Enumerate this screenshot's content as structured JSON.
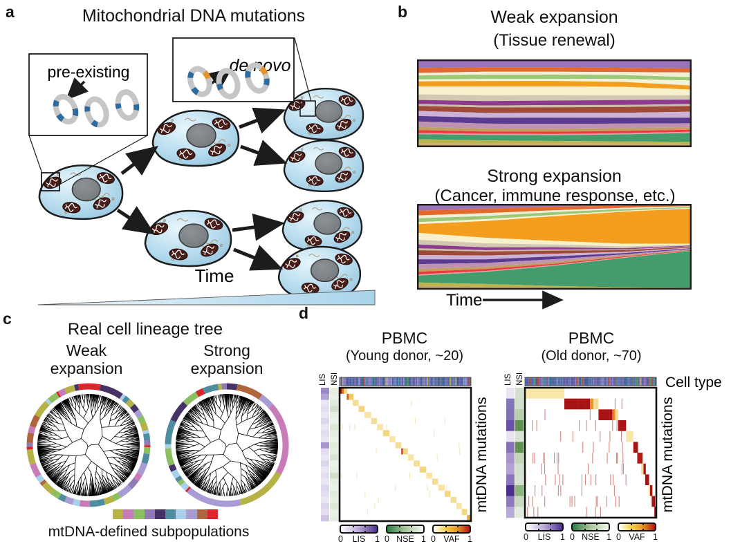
{
  "figure": {
    "a": {
      "label": "a",
      "title": "Mitochondrial DNA mutations",
      "pre_existing_label": "pre-existing",
      "de_novo_label": "de novo",
      "time_label": "Time",
      "mutation_colors": {
        "backbone": "#c6c6c6",
        "pre_existing": "#2e6b9e",
        "de_novo": "#e8922e"
      },
      "cell_colors": {
        "body_light": "#ddf0f8",
        "body_mid": "#a6d2e8",
        "body_dark": "#7db8d8",
        "outline": "#1c1c1c",
        "nucleus": "#7e8285",
        "mitochondrion": "#4a1f1a",
        "er": "#b39b79"
      }
    },
    "b": {
      "label": "b",
      "weak_title": "Weak expansion",
      "weak_subtitle": "(Tissue renewal)",
      "strong_title": "Strong expansion",
      "strong_subtitle": "(Cancer, immune response, etc.)",
      "time_label": "Time"
    },
    "c": {
      "label": "c",
      "title": "Real cell lineage tree",
      "weak_line1": "Weak",
      "weak_line2": "expansion",
      "strong_line1": "Strong",
      "strong_line2": "expansion",
      "legend_label": "mtDNA-defined subpopulations",
      "legend_colors": [
        "#b5b246",
        "#c77cb9",
        "#8cbf5f",
        "#9279b6",
        "#463267",
        "#4e8ca0",
        "#a8d0e8",
        "#a99bd4",
        "#b0663c",
        "#d9252b"
      ]
    },
    "d": {
      "label": "d",
      "young_title": "PBMC",
      "young_subtitle": "(Young donor,  ~20)",
      "old_title": "PBMC",
      "old_subtitle": "(Old donor,  ~70)",
      "cell_type_label": "Cell type",
      "mutations_label": "mtDNA mutations",
      "lis_label": "LIS",
      "nse_label": "NSE",
      "colorbars": [
        {
          "name": "LIS",
          "min": "0",
          "max": "1",
          "gradient": [
            "#ffffff",
            "#b9a9d6",
            "#4a2f8f"
          ]
        },
        {
          "name": "NSE",
          "min": "0",
          "max": "1",
          "gradient": [
            "#2f7d46",
            "#a8c69c",
            "#f4f8f1"
          ]
        },
        {
          "name": "VAF",
          "min": "0",
          "max": "1",
          "gradient": [
            "#ffffff",
            "#f5d34e",
            "#e8961e",
            "#b01414"
          ]
        }
      ]
    }
  },
  "muller": {
    "weak": {
      "bands": [
        [
          "#9a74b8",
          0.085,
          0.08,
          0.08,
          0.085,
          0.09
        ],
        [
          "#e4692d",
          0.05,
          0.046,
          0.046,
          0.044,
          0.04
        ],
        [
          "#f3efd7",
          0.025,
          0.03,
          0.03,
          0.03,
          0.046
        ],
        [
          "#9cc878",
          0.04,
          0.045,
          0.045,
          0.04,
          0.034
        ],
        [
          "#f6f2d8",
          0.02,
          0.02,
          0.02,
          0.03,
          0.05
        ],
        [
          "#f39e1e",
          0.05,
          0.056,
          0.056,
          0.05,
          0.04
        ],
        [
          "#f6f1cb",
          0.08,
          0.09,
          0.09,
          0.085,
          0.056
        ],
        [
          "#d2c8b2",
          0.056,
          0.06,
          0.056,
          0.05,
          0.044
        ],
        [
          "#8e3a8e",
          0.04,
          0.046,
          0.046,
          0.05,
          0.044
        ],
        [
          "#cbbda6",
          0.02,
          0.02,
          0.024,
          0.02,
          0.02
        ],
        [
          "#9e4c39",
          0.05,
          0.056,
          0.056,
          0.06,
          0.056
        ],
        [
          "#cbb2d6",
          0.05,
          0.05,
          0.05,
          0.05,
          0.06
        ],
        [
          "#5b3b90",
          0.056,
          0.06,
          0.064,
          0.06,
          0.056
        ],
        [
          "#bd92b3",
          0.056,
          0.05,
          0.05,
          0.044,
          0.04
        ],
        [
          "#bf9f60",
          0.03,
          0.03,
          0.03,
          0.03,
          0.024
        ],
        [
          "#ee3a3c",
          0.03,
          0.024,
          0.024,
          0.024,
          0.02
        ],
        [
          "#dba3a9",
          0.012,
          0.012,
          0.012,
          0.012,
          0.012
        ],
        [
          "#449c6c",
          0.05,
          0.056,
          0.06,
          0.07,
          0.09
        ],
        [
          "#b9b44c",
          0.04,
          0.03,
          0.024,
          0.02,
          0.018
        ],
        [
          "#c7a76b",
          0.04,
          0.04,
          0.04,
          0.04,
          0.034
        ]
      ]
    },
    "strong": {
      "bands": [
        [
          "#9a74b8",
          0.07,
          0.05,
          0.03,
          0.02,
          0.012
        ],
        [
          "#e4692d",
          0.05,
          0.05,
          0.04,
          0.024,
          0.014
        ],
        [
          "#f3efd7",
          0.03,
          0.03,
          0.02,
          0.014,
          0.01
        ],
        [
          "#9cc878",
          0.04,
          0.034,
          0.03,
          0.02,
          0.01
        ],
        [
          "#f6f2d8",
          0.02,
          0.02,
          0.014,
          0.01,
          0.008
        ],
        [
          "#f39e1e",
          0.09,
          0.18,
          0.27,
          0.36,
          0.41
        ],
        [
          "#f6f1cb",
          0.07,
          0.06,
          0.04,
          0.03,
          0.01
        ],
        [
          "#d2c8b2",
          0.05,
          0.044,
          0.03,
          0.02,
          0.01
        ],
        [
          "#8e3a8e",
          0.04,
          0.03,
          0.024,
          0.014,
          0.008
        ],
        [
          "#cbbda6",
          0.02,
          0.014,
          0.012,
          0.008,
          0.005
        ],
        [
          "#9e4c39",
          0.05,
          0.044,
          0.034,
          0.02,
          0.01
        ],
        [
          "#cbb2d6",
          0.044,
          0.04,
          0.03,
          0.014,
          0.008
        ],
        [
          "#5b3b90",
          0.05,
          0.04,
          0.03,
          0.014,
          0.008
        ],
        [
          "#bd92b3",
          0.05,
          0.04,
          0.03,
          0.014,
          0.008
        ],
        [
          "#bf9f60",
          0.03,
          0.024,
          0.02,
          0.01,
          0.006
        ],
        [
          "#ee3a3c",
          0.028,
          0.022,
          0.014,
          0.01,
          0.005
        ],
        [
          "#dba3a9",
          0.012,
          0.01,
          0.008,
          0.006,
          0.004
        ],
        [
          "#449c6c",
          0.07,
          0.13,
          0.22,
          0.33,
          0.43
        ],
        [
          "#b9b44c",
          0.034,
          0.03,
          0.02,
          0.014,
          0.012
        ],
        [
          "#c7a76b",
          0.04,
          0.03,
          0.02,
          0.012,
          0.008
        ]
      ]
    }
  },
  "trees": {
    "weak_ring": [
      [
        "#d9252b",
        0.035
      ],
      [
        "#463267",
        0.07
      ],
      [
        "#a8d0e8",
        0.01
      ],
      [
        "#4e8ca0",
        0.015
      ],
      [
        "#b5b246",
        0.02
      ],
      [
        "#463267",
        0.02
      ],
      [
        "#a99bd4",
        0.02
      ],
      [
        "#8cbf5f",
        0.02
      ],
      [
        "#b5b246",
        0.025
      ],
      [
        "#a8d0e8",
        0.01
      ],
      [
        "#4e8ca0",
        0.02
      ],
      [
        "#9279b6",
        0.015
      ],
      [
        "#d9252b",
        0.006
      ],
      [
        "#8cbf5f",
        0.02
      ],
      [
        "#4e8ca0",
        0.03
      ],
      [
        "#a99bd4",
        0.035
      ],
      [
        "#c77cb9",
        0.02
      ],
      [
        "#9279b6",
        0.03
      ],
      [
        "#a99bd4",
        0.04
      ],
      [
        "#8cbf5f",
        0.02
      ],
      [
        "#b5b246",
        0.03
      ],
      [
        "#4e8ca0",
        0.045
      ],
      [
        "#c77cb9",
        0.03
      ],
      [
        "#a8d0e8",
        0.02
      ],
      [
        "#a99bd4",
        0.025
      ],
      [
        "#4e8ca0",
        0.02
      ],
      [
        "#8cbf5f",
        0.025
      ],
      [
        "#b5b246",
        0.035
      ],
      [
        "#b0663c",
        0.01
      ],
      [
        "#a8d0e8",
        0.02
      ],
      [
        "#c77cb9",
        0.04
      ],
      [
        "#b5b246",
        0.045
      ],
      [
        "#d9252b",
        0.008
      ],
      [
        "#9279b6",
        0.012
      ],
      [
        "#b0663c",
        0.03
      ],
      [
        "#c77cb9",
        0.02
      ],
      [
        "#b0663c",
        0.035
      ],
      [
        "#b5b246",
        0.05
      ],
      [
        "#a8d0e8",
        0.01
      ],
      [
        "#8cbf5f",
        0.03
      ],
      [
        "#d9252b",
        0.006
      ],
      [
        "#c77cb9",
        0.02
      ],
      [
        "#b5b246",
        0.03
      ],
      [
        "#463267",
        0.012
      ],
      [
        "#d9252b",
        0.03
      ]
    ],
    "strong_ring": [
      [
        "#463267",
        0.03
      ],
      [
        "#b0663c",
        0.075
      ],
      [
        "#a99bd4",
        0.04
      ],
      [
        "#c77cb9",
        0.21
      ],
      [
        "#b5b246",
        0.145
      ],
      [
        "#a99bd4",
        0.16
      ],
      [
        "#d9252b",
        0.006
      ],
      [
        "#a8d0e8",
        0.02
      ],
      [
        "#8cbf5f",
        0.012
      ],
      [
        "#4e8ca0",
        0.012
      ],
      [
        "#a8d0e8",
        0.022
      ],
      [
        "#463267",
        0.018
      ],
      [
        "#8cbf5f",
        0.05
      ],
      [
        "#a8d0e8",
        0.012
      ],
      [
        "#4e8ca0",
        0.07
      ],
      [
        "#463267",
        0.062
      ],
      [
        "#8cbf5f",
        0.044
      ],
      [
        "#d9252b",
        0.022
      ],
      [
        "#4e8ca0",
        0.044
      ],
      [
        "#b5b246",
        0.01
      ],
      [
        "#9279b6",
        0.015
      ]
    ]
  },
  "heatmaps": {
    "young": {
      "rows": 22,
      "strip_n": 110,
      "strip_seed": 11,
      "strip_palette": [
        "#5b7fb5",
        "#6a5ca8",
        "#46659e",
        "#8a7fc0",
        "#3f5f9e",
        "#7a6ab0",
        "#9a8fd0"
      ],
      "strip_accents": [
        "#b04a3a",
        "#4f8f6f",
        "#c8a84b",
        "#5b9ab5"
      ],
      "lis": [
        "#9b88c4",
        "#b3a4d2",
        "#eae6f2",
        "#e4def0",
        "#eae6f2",
        "#ded7ec",
        "#eae6f2",
        "#e4def0",
        "#eae6f2",
        "#a795cc",
        "#e4def0",
        "#eae6f2",
        "#ded7ec",
        "#eae6f2",
        "#e4def0",
        "#eae6f2",
        "#ded7ec",
        "#e4def0",
        "#eae6f2",
        "#ded7ec",
        "#e4def0",
        "#cfc5e4"
      ],
      "nse": [
        "#e6eee1",
        "#eaf1e6",
        "#e0eada",
        "#d2e0cb",
        "#e6eee1",
        "#eaf1e6",
        "#dce7d6",
        "#e6eee1",
        "#eaf1e6",
        "#e0eada",
        "#e6eee1",
        "#d8e4d2",
        "#eaf1e6",
        "#e6eee1",
        "#d2e0cb",
        "#e6eee1",
        "#eaf1e6",
        "#e0eada",
        "#e6eee1",
        "#dce7d6",
        "#eaf1e6",
        "#e6eee1"
      ],
      "blocks": [
        [
          0,
          0.0,
          0.06,
          [
            [
              "#a01010",
              0.3
            ],
            [
              "#e07818",
              0.25
            ],
            [
              "#f6d98e",
              0.45
            ]
          ]
        ],
        [
          1,
          0.055,
          0.05,
          [
            [
              "#c85c10",
              0.3
            ],
            [
              "#f2c560",
              0.7
            ]
          ]
        ],
        [
          2,
          0.1,
          0.045,
          [
            [
              "#f6dd96",
              1
            ]
          ]
        ],
        [
          3,
          0.145,
          0.045,
          [
            [
              "#f3d67e",
              1
            ]
          ]
        ],
        [
          4,
          0.19,
          0.05,
          [
            [
              "#f8e4a4",
              1
            ]
          ]
        ],
        [
          5,
          0.24,
          0.045,
          [
            [
              "#f6dd96",
              1
            ]
          ]
        ],
        [
          6,
          0.285,
          0.045,
          [
            [
              "#f8e4a4",
              1
            ]
          ]
        ],
        [
          7,
          0.33,
          0.05,
          [
            [
              "#f3d67e",
              1
            ]
          ]
        ],
        [
          8,
          0.38,
          0.045,
          [
            [
              "#f8e4a4",
              1
            ]
          ]
        ],
        [
          9,
          0.425,
          0.045,
          [
            [
              "#f6dd96",
              1
            ]
          ]
        ],
        [
          10,
          0.47,
          0.05,
          [
            [
              "#c01414",
              0.22
            ],
            [
              "#f3d67e",
              0.78
            ]
          ]
        ],
        [
          11,
          0.52,
          0.045,
          [
            [
              "#f8e4a4",
              1
            ]
          ]
        ],
        [
          12,
          0.565,
          0.045,
          [
            [
              "#f6dd96",
              1
            ]
          ]
        ],
        [
          13,
          0.61,
          0.05,
          [
            [
              "#f3d67e",
              1
            ]
          ]
        ],
        [
          14,
          0.66,
          0.045,
          [
            [
              "#f8e4a4",
              1
            ]
          ]
        ],
        [
          15,
          0.705,
          0.045,
          [
            [
              "#f6dd96",
              1
            ]
          ]
        ],
        [
          16,
          0.75,
          0.05,
          [
            [
              "#f8e4a4",
              1
            ]
          ]
        ],
        [
          17,
          0.8,
          0.045,
          [
            [
              "#f3d67e",
              1
            ]
          ]
        ],
        [
          18,
          0.845,
          0.045,
          [
            [
              "#f6dd96",
              1
            ]
          ]
        ],
        [
          19,
          0.89,
          0.04,
          [
            [
              "#f8e4a4",
              1
            ]
          ]
        ],
        [
          20,
          0.93,
          0.04,
          [
            [
              "#f3d67e",
              1
            ]
          ]
        ],
        [
          21,
          0.97,
          0.03,
          [
            [
              "#e8a23c",
              1
            ]
          ]
        ]
      ],
      "noise": {
        "count": 24,
        "color": "#edc870",
        "alpha": 0.5,
        "xmax": 0.92,
        "seed": 5
      }
    },
    "old": {
      "rows": 12,
      "strip_n": 110,
      "strip_seed": 23,
      "strip_palette": [
        "#5b7fb5",
        "#6a5ca8",
        "#46659e",
        "#8a7fc0",
        "#3f5f9e",
        "#7a6ab0",
        "#4a6fa5"
      ],
      "strip_accents": [
        "#b04a3a",
        "#4f8f6f",
        "#c8a84b",
        "#3e8f8f"
      ],
      "lis": [
        "#eae5f1",
        "#8475b8",
        "#8171b5",
        "#6a51a8",
        "#e9e4f0",
        "#8671b4",
        "#a795cc",
        "#b3a3d4",
        "#8b77bb",
        "#4a2f8f",
        "#8d7abd",
        "#b9a9d6"
      ],
      "nse": [
        "#d3e0cc",
        "#d0dfca",
        "#b7cfae",
        "#5f9150",
        "#dae5d4",
        "#5f9150",
        "#c2d6ba",
        "#d4e2cf",
        "#d7e3d2",
        "#8db380",
        "#c7d9c0",
        "#e2ebdd"
      ],
      "blocks": [
        [
          0,
          0.0,
          0.3,
          [
            [
              "#f8e7a8",
              1
            ]
          ]
        ],
        [
          1,
          0.3,
          0.26,
          [
            [
              "#a81414",
              0.75
            ],
            [
              "#e8961e",
              0.1
            ],
            [
              "#f6dd96",
              0.15
            ]
          ]
        ],
        [
          2,
          0.56,
          0.15,
          [
            [
              "#a81414",
              0.7
            ],
            [
              "#e8961e",
              0.15
            ],
            [
              "#f6dd96",
              0.15
            ]
          ]
        ],
        [
          3,
          0.71,
          0.06,
          [
            [
              "#a81414",
              1
            ]
          ]
        ],
        [
          4,
          0.77,
          0.055,
          [
            [
              "#f8e7a8",
              1
            ]
          ]
        ],
        [
          5,
          0.825,
          0.035,
          [
            [
              "#a81414",
              1
            ]
          ]
        ],
        [
          6,
          0.855,
          0.04,
          [
            [
              "#b01c14",
              1
            ]
          ]
        ],
        [
          7,
          0.885,
          0.035,
          [
            [
              "#f6dd96",
              0.5
            ],
            [
              "#a81414",
              0.5
            ]
          ]
        ],
        [
          8,
          0.915,
          0.03,
          [
            [
              "#a81414",
              1
            ]
          ]
        ],
        [
          9,
          0.94,
          0.03,
          [
            [
              "#f8e7a8",
              0.4
            ],
            [
              "#a81414",
              0.6
            ]
          ]
        ],
        [
          10,
          0.965,
          0.025,
          [
            [
              "#a81414",
              1
            ]
          ]
        ],
        [
          11,
          0.985,
          0.015,
          [
            [
              "#a81414",
              1
            ]
          ]
        ]
      ],
      "noise": {
        "count": 80,
        "color": "#b02418",
        "alpha": 0.55,
        "xmax": 0.78,
        "seed": 9
      }
    }
  }
}
